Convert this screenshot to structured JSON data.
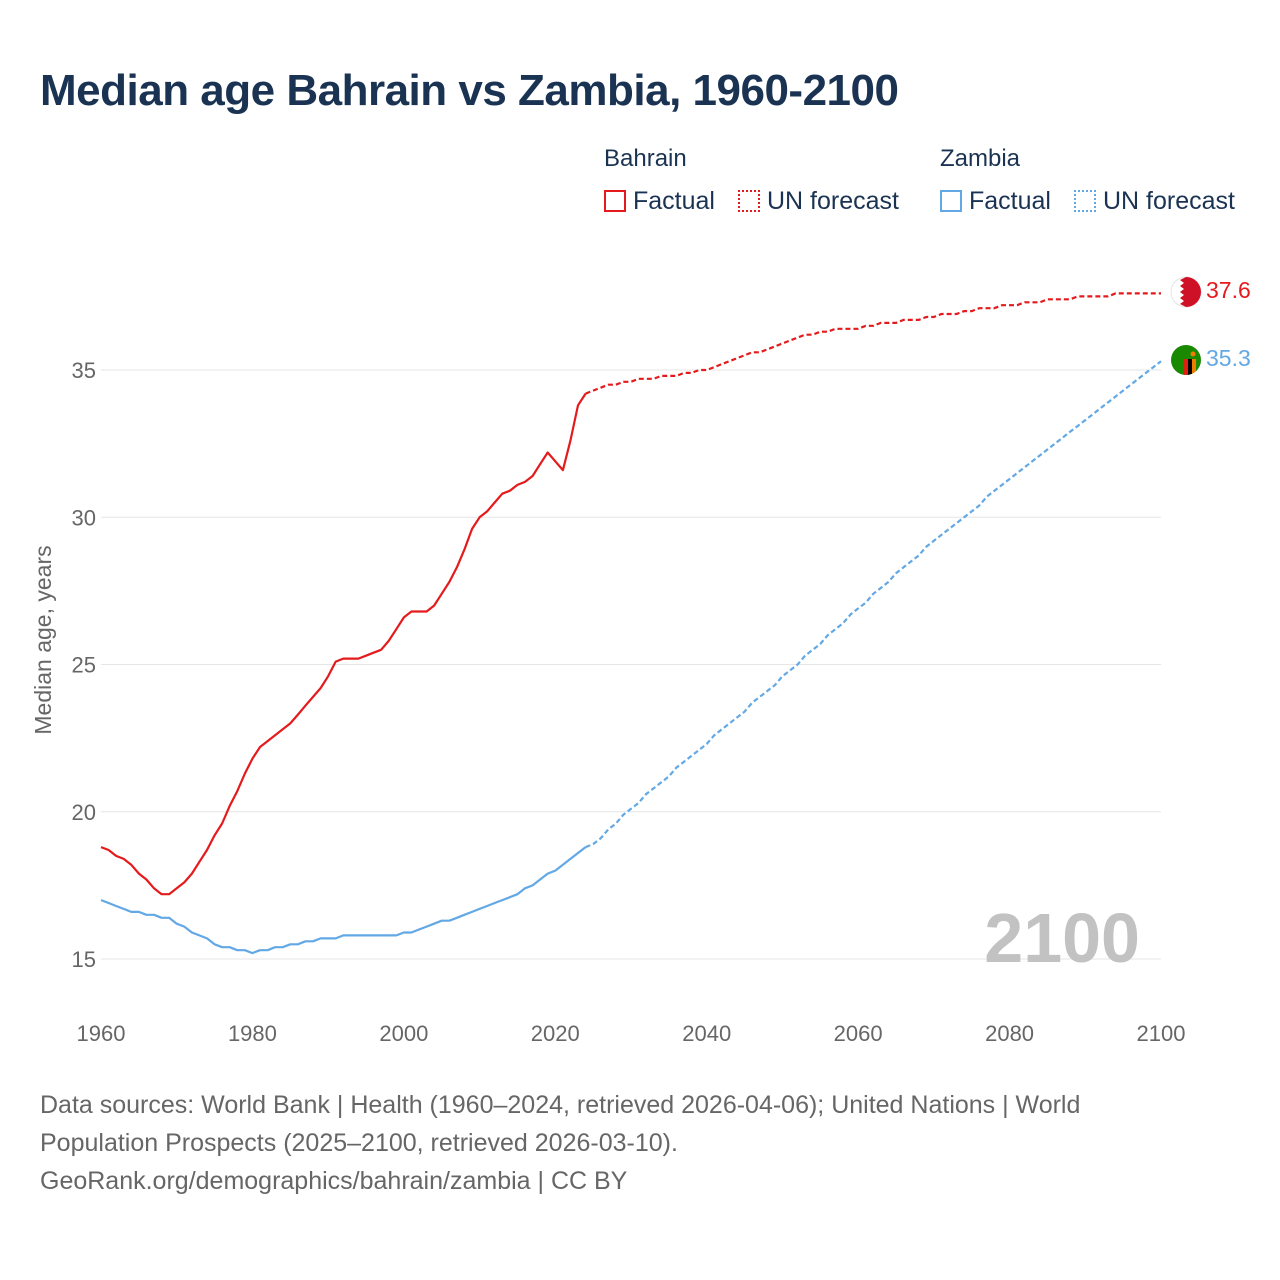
{
  "title": "Median age Bahrain vs Zambia, 1960-2100",
  "legend": {
    "groups": [
      {
        "name": "Bahrain",
        "factual": "Factual",
        "forecast": "UN forecast",
        "color": "#e41a1c"
      },
      {
        "name": "Zambia",
        "factual": "Factual",
        "forecast": "UN forecast",
        "color": "#62a8e5"
      }
    ]
  },
  "year_watermark": "2100",
  "sources": {
    "line1": "Data sources: World Bank | Health (1960–2024, retrieved 2026-04-06); United Nations | World Population Prospects (2025–2100, retrieved 2026-03-10).",
    "line2": "GeoRank.org/demographics/bahrain/zambia | CC BY"
  },
  "chart_data": {
    "type": "line",
    "title": "Median age Bahrain vs Zambia, 1960-2100",
    "xlabel": "",
    "ylabel": "Median age, years",
    "xlim": [
      1960,
      2100
    ],
    "ylim": [
      13.5,
      38.5
    ],
    "xticks": [
      1960,
      1980,
      2000,
      2020,
      2040,
      2060,
      2080,
      2100
    ],
    "yticks": [
      15,
      20,
      25,
      30,
      35
    ],
    "grid": true,
    "series": [
      {
        "name": "Bahrain",
        "color": "#e41a1c",
        "end_label": "37.6",
        "factual": [
          [
            1960,
            18.8
          ],
          [
            1961,
            18.7
          ],
          [
            1962,
            18.5
          ],
          [
            1963,
            18.4
          ],
          [
            1964,
            18.2
          ],
          [
            1965,
            17.9
          ],
          [
            1966,
            17.7
          ],
          [
            1967,
            17.4
          ],
          [
            1968,
            17.2
          ],
          [
            1969,
            17.2
          ],
          [
            1970,
            17.4
          ],
          [
            1971,
            17.6
          ],
          [
            1972,
            17.9
          ],
          [
            1973,
            18.3
          ],
          [
            1974,
            18.7
          ],
          [
            1975,
            19.2
          ],
          [
            1976,
            19.6
          ],
          [
            1977,
            20.2
          ],
          [
            1978,
            20.7
          ],
          [
            1979,
            21.3
          ],
          [
            1980,
            21.8
          ],
          [
            1981,
            22.2
          ],
          [
            1982,
            22.4
          ],
          [
            1983,
            22.6
          ],
          [
            1984,
            22.8
          ],
          [
            1985,
            23.0
          ],
          [
            1986,
            23.3
          ],
          [
            1987,
            23.6
          ],
          [
            1988,
            23.9
          ],
          [
            1989,
            24.2
          ],
          [
            1990,
            24.6
          ],
          [
            1991,
            25.1
          ],
          [
            1992,
            25.2
          ],
          [
            1993,
            25.2
          ],
          [
            1994,
            25.2
          ],
          [
            1995,
            25.3
          ],
          [
            1996,
            25.4
          ],
          [
            1997,
            25.5
          ],
          [
            1998,
            25.8
          ],
          [
            1999,
            26.2
          ],
          [
            2000,
            26.6
          ],
          [
            2001,
            26.8
          ],
          [
            2002,
            26.8
          ],
          [
            2003,
            26.8
          ],
          [
            2004,
            27.0
          ],
          [
            2005,
            27.4
          ],
          [
            2006,
            27.8
          ],
          [
            2007,
            28.3
          ],
          [
            2008,
            28.9
          ],
          [
            2009,
            29.6
          ],
          [
            2010,
            30.0
          ],
          [
            2011,
            30.2
          ],
          [
            2012,
            30.5
          ],
          [
            2013,
            30.8
          ],
          [
            2014,
            30.9
          ],
          [
            2015,
            31.1
          ],
          [
            2016,
            31.2
          ],
          [
            2017,
            31.4
          ],
          [
            2018,
            31.8
          ],
          [
            2019,
            32.2
          ],
          [
            2020,
            31.9
          ],
          [
            2021,
            31.6
          ],
          [
            2022,
            32.6
          ],
          [
            2023,
            33.8
          ],
          [
            2024,
            34.2
          ]
        ],
        "forecast": [
          [
            2024,
            34.2
          ],
          [
            2025,
            34.3
          ],
          [
            2026,
            34.4
          ],
          [
            2027,
            34.5
          ],
          [
            2028,
            34.5
          ],
          [
            2029,
            34.6
          ],
          [
            2030,
            34.6
          ],
          [
            2031,
            34.7
          ],
          [
            2032,
            34.7
          ],
          [
            2033,
            34.7
          ],
          [
            2034,
            34.8
          ],
          [
            2035,
            34.8
          ],
          [
            2036,
            34.8
          ],
          [
            2037,
            34.9
          ],
          [
            2038,
            34.9
          ],
          [
            2039,
            35.0
          ],
          [
            2040,
            35.0
          ],
          [
            2041,
            35.1
          ],
          [
            2042,
            35.2
          ],
          [
            2043,
            35.3
          ],
          [
            2044,
            35.4
          ],
          [
            2045,
            35.5
          ],
          [
            2046,
            35.6
          ],
          [
            2047,
            35.6
          ],
          [
            2048,
            35.7
          ],
          [
            2049,
            35.8
          ],
          [
            2050,
            35.9
          ],
          [
            2051,
            36.0
          ],
          [
            2052,
            36.1
          ],
          [
            2053,
            36.2
          ],
          [
            2054,
            36.2
          ],
          [
            2055,
            36.3
          ],
          [
            2056,
            36.3
          ],
          [
            2057,
            36.4
          ],
          [
            2058,
            36.4
          ],
          [
            2059,
            36.4
          ],
          [
            2060,
            36.4
          ],
          [
            2061,
            36.5
          ],
          [
            2062,
            36.5
          ],
          [
            2063,
            36.6
          ],
          [
            2064,
            36.6
          ],
          [
            2065,
            36.6
          ],
          [
            2066,
            36.7
          ],
          [
            2067,
            36.7
          ],
          [
            2068,
            36.7
          ],
          [
            2069,
            36.8
          ],
          [
            2070,
            36.8
          ],
          [
            2071,
            36.9
          ],
          [
            2072,
            36.9
          ],
          [
            2073,
            36.9
          ],
          [
            2074,
            37.0
          ],
          [
            2075,
            37.0
          ],
          [
            2076,
            37.1
          ],
          [
            2077,
            37.1
          ],
          [
            2078,
            37.1
          ],
          [
            2079,
            37.2
          ],
          [
            2080,
            37.2
          ],
          [
            2081,
            37.2
          ],
          [
            2082,
            37.3
          ],
          [
            2083,
            37.3
          ],
          [
            2084,
            37.3
          ],
          [
            2085,
            37.4
          ],
          [
            2086,
            37.4
          ],
          [
            2087,
            37.4
          ],
          [
            2088,
            37.4
          ],
          [
            2089,
            37.5
          ],
          [
            2090,
            37.5
          ],
          [
            2091,
            37.5
          ],
          [
            2092,
            37.5
          ],
          [
            2093,
            37.5
          ],
          [
            2094,
            37.6
          ],
          [
            2095,
            37.6
          ],
          [
            2096,
            37.6
          ],
          [
            2097,
            37.6
          ],
          [
            2098,
            37.6
          ],
          [
            2099,
            37.6
          ],
          [
            2100,
            37.6
          ]
        ]
      },
      {
        "name": "Zambia",
        "color": "#62a8e5",
        "end_label": "35.3",
        "factual": [
          [
            1960,
            17.0
          ],
          [
            1961,
            16.9
          ],
          [
            1962,
            16.8
          ],
          [
            1963,
            16.7
          ],
          [
            1964,
            16.6
          ],
          [
            1965,
            16.6
          ],
          [
            1966,
            16.5
          ],
          [
            1967,
            16.5
          ],
          [
            1968,
            16.4
          ],
          [
            1969,
            16.4
          ],
          [
            1970,
            16.2
          ],
          [
            1971,
            16.1
          ],
          [
            1972,
            15.9
          ],
          [
            1973,
            15.8
          ],
          [
            1974,
            15.7
          ],
          [
            1975,
            15.5
          ],
          [
            1976,
            15.4
          ],
          [
            1977,
            15.4
          ],
          [
            1978,
            15.3
          ],
          [
            1979,
            15.3
          ],
          [
            1980,
            15.2
          ],
          [
            1981,
            15.3
          ],
          [
            1982,
            15.3
          ],
          [
            1983,
            15.4
          ],
          [
            1984,
            15.4
          ],
          [
            1985,
            15.5
          ],
          [
            1986,
            15.5
          ],
          [
            1987,
            15.6
          ],
          [
            1988,
            15.6
          ],
          [
            1989,
            15.7
          ],
          [
            1990,
            15.7
          ],
          [
            1991,
            15.7
          ],
          [
            1992,
            15.8
          ],
          [
            1993,
            15.8
          ],
          [
            1994,
            15.8
          ],
          [
            1995,
            15.8
          ],
          [
            1996,
            15.8
          ],
          [
            1997,
            15.8
          ],
          [
            1998,
            15.8
          ],
          [
            1999,
            15.8
          ],
          [
            2000,
            15.9
          ],
          [
            2001,
            15.9
          ],
          [
            2002,
            16.0
          ],
          [
            2003,
            16.1
          ],
          [
            2004,
            16.2
          ],
          [
            2005,
            16.3
          ],
          [
            2006,
            16.3
          ],
          [
            2007,
            16.4
          ],
          [
            2008,
            16.5
          ],
          [
            2009,
            16.6
          ],
          [
            2010,
            16.7
          ],
          [
            2011,
            16.8
          ],
          [
            2012,
            16.9
          ],
          [
            2013,
            17.0
          ],
          [
            2014,
            17.1
          ],
          [
            2015,
            17.2
          ],
          [
            2016,
            17.4
          ],
          [
            2017,
            17.5
          ],
          [
            2018,
            17.7
          ],
          [
            2019,
            17.9
          ],
          [
            2020,
            18.0
          ],
          [
            2021,
            18.2
          ],
          [
            2022,
            18.4
          ],
          [
            2023,
            18.6
          ],
          [
            2024,
            18.8
          ]
        ],
        "forecast": [
          [
            2024,
            18.8
          ],
          [
            2025,
            18.9
          ],
          [
            2026,
            19.1
          ],
          [
            2027,
            19.4
          ],
          [
            2028,
            19.6
          ],
          [
            2029,
            19.9
          ],
          [
            2030,
            20.1
          ],
          [
            2031,
            20.3
          ],
          [
            2032,
            20.6
          ],
          [
            2033,
            20.8
          ],
          [
            2034,
            21.0
          ],
          [
            2035,
            21.2
          ],
          [
            2036,
            21.5
          ],
          [
            2037,
            21.7
          ],
          [
            2038,
            21.9
          ],
          [
            2039,
            22.1
          ],
          [
            2040,
            22.3
          ],
          [
            2041,
            22.6
          ],
          [
            2042,
            22.8
          ],
          [
            2043,
            23.0
          ],
          [
            2044,
            23.2
          ],
          [
            2045,
            23.4
          ],
          [
            2046,
            23.7
          ],
          [
            2047,
            23.9
          ],
          [
            2048,
            24.1
          ],
          [
            2049,
            24.3
          ],
          [
            2050,
            24.6
          ],
          [
            2051,
            24.8
          ],
          [
            2052,
            25.0
          ],
          [
            2053,
            25.3
          ],
          [
            2054,
            25.5
          ],
          [
            2055,
            25.7
          ],
          [
            2056,
            26.0
          ],
          [
            2057,
            26.2
          ],
          [
            2058,
            26.4
          ],
          [
            2059,
            26.7
          ],
          [
            2060,
            26.9
          ],
          [
            2061,
            27.1
          ],
          [
            2062,
            27.4
          ],
          [
            2063,
            27.6
          ],
          [
            2064,
            27.8
          ],
          [
            2065,
            28.1
          ],
          [
            2066,
            28.3
          ],
          [
            2067,
            28.5
          ],
          [
            2068,
            28.7
          ],
          [
            2069,
            29.0
          ],
          [
            2070,
            29.2
          ],
          [
            2071,
            29.4
          ],
          [
            2072,
            29.6
          ],
          [
            2073,
            29.8
          ],
          [
            2074,
            30.0
          ],
          [
            2075,
            30.2
          ],
          [
            2076,
            30.4
          ],
          [
            2077,
            30.7
          ],
          [
            2078,
            30.9
          ],
          [
            2079,
            31.1
          ],
          [
            2080,
            31.3
          ],
          [
            2081,
            31.5
          ],
          [
            2082,
            31.7
          ],
          [
            2083,
            31.9
          ],
          [
            2084,
            32.1
          ],
          [
            2085,
            32.3
          ],
          [
            2086,
            32.5
          ],
          [
            2087,
            32.7
          ],
          [
            2088,
            32.9
          ],
          [
            2089,
            33.1
          ],
          [
            2090,
            33.3
          ],
          [
            2091,
            33.5
          ],
          [
            2092,
            33.7
          ],
          [
            2093,
            33.9
          ],
          [
            2094,
            34.1
          ],
          [
            2095,
            34.3
          ],
          [
            2096,
            34.5
          ],
          [
            2097,
            34.7
          ],
          [
            2098,
            34.9
          ],
          [
            2099,
            35.1
          ],
          [
            2100,
            35.3
          ]
        ]
      }
    ]
  }
}
